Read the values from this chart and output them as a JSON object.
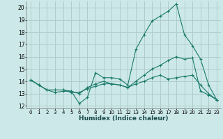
{
  "xlabel": "Humidex (Indice chaleur)",
  "ylabel": "",
  "background_color": "#cce8e8",
  "grid_color": "#b0cccc",
  "line_color": "#1a7a6a",
  "xlim": [
    -0.5,
    23.5
  ],
  "ylim": [
    11.8,
    20.5
  ],
  "xticks": [
    0,
    1,
    2,
    3,
    4,
    5,
    6,
    7,
    8,
    9,
    10,
    11,
    12,
    13,
    14,
    15,
    16,
    17,
    18,
    19,
    20,
    21,
    22,
    23
  ],
  "yticks": [
    12,
    13,
    14,
    15,
    16,
    17,
    18,
    19,
    20
  ],
  "series": [
    [
      14.1,
      13.7,
      13.3,
      13.1,
      13.2,
      13.2,
      12.2,
      12.7,
      14.7,
      14.3,
      14.3,
      14.2,
      13.7,
      16.6,
      17.8,
      18.9,
      19.3,
      19.7,
      20.3,
      17.8,
      16.9,
      15.8,
      13.7,
      12.5
    ],
    [
      14.1,
      13.7,
      13.3,
      13.3,
      13.3,
      13.1,
      13.1,
      13.4,
      13.6,
      13.8,
      13.8,
      13.7,
      13.5,
      14.0,
      14.5,
      15.0,
      15.3,
      15.7,
      16.0,
      15.8,
      15.9,
      13.2,
      12.9,
      12.5
    ],
    [
      14.1,
      13.7,
      13.3,
      13.3,
      13.3,
      13.2,
      13.0,
      13.5,
      13.8,
      14.0,
      13.8,
      13.7,
      13.5,
      13.8,
      14.0,
      14.3,
      14.5,
      14.2,
      14.3,
      14.4,
      14.5,
      13.7,
      13.0,
      12.5
    ]
  ]
}
